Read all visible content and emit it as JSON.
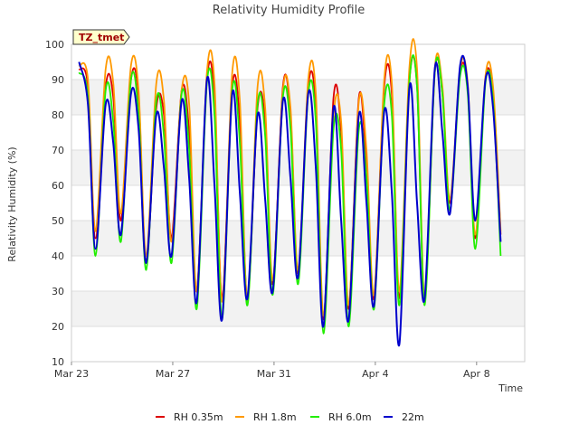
{
  "chart_data": {
    "type": "line",
    "title": "Relativity Humidity Profile",
    "xlabel": "Time",
    "ylabel": "Relativity Humidity (%)",
    "badge": "TZ_tmet",
    "ylim": [
      10,
      100
    ],
    "xlim": [
      0,
      17.9
    ],
    "yticks": [
      10,
      20,
      30,
      40,
      50,
      60,
      70,
      80,
      90,
      100
    ],
    "xticks": [
      {
        "label": "Mar 23",
        "day": 0
      },
      {
        "label": "Mar 27",
        "day": 4
      },
      {
        "label": "Mar 31",
        "day": 8
      },
      {
        "label": "Apr 4",
        "day": 12
      },
      {
        "label": "Apr 8",
        "day": 16
      }
    ],
    "x": [
      0.3,
      0.65,
      0.95,
      1.35,
      1.65,
      1.95,
      2.35,
      2.65,
      2.95,
      3.35,
      3.65,
      3.95,
      4.35,
      4.65,
      4.95,
      5.35,
      5.65,
      5.95,
      6.35,
      6.65,
      6.95,
      7.35,
      7.65,
      7.95,
      8.35,
      8.65,
      8.95,
      9.35,
      9.65,
      9.95,
      10.35,
      10.65,
      10.95,
      11.35,
      11.65,
      11.95,
      12.35,
      12.65,
      12.95,
      13.35,
      13.65,
      13.95,
      14.35,
      14.65,
      14.95,
      15.35,
      15.65,
      15.95,
      16.35,
      16.65,
      16.95
    ],
    "series": [
      {
        "name": "RH 0.35m",
        "color": "#dd0000",
        "values": [
          93,
          88,
          45,
          88,
          85,
          50,
          90,
          85,
          38,
          82,
          80,
          45,
          87,
          75,
          30,
          90,
          85,
          28,
          88,
          78,
          28,
          82,
          78,
          32,
          88,
          80,
          35,
          88,
          82,
          22,
          85,
          75,
          25,
          85,
          65,
          28,
          88,
          86,
          28,
          90,
          88,
          28,
          92,
          86,
          55,
          92,
          87,
          45,
          90,
          85,
          46
        ]
      },
      {
        "name": "RH 1.8m",
        "color": "#ff9900",
        "values": [
          94,
          90,
          47,
          93,
          89,
          52,
          94,
          87,
          40,
          89,
          84,
          44,
          87,
          83,
          30,
          92,
          89,
          27,
          92,
          84,
          27,
          88,
          82,
          33,
          87,
          82,
          36,
          90,
          86,
          23,
          80,
          78,
          26,
          84,
          70,
          29,
          90,
          89,
          30,
          94,
          93,
          29,
          93,
          88,
          56,
          93,
          89,
          46,
          91,
          88,
          47
        ]
      },
      {
        "name": "RH 6.0m",
        "color": "#22ee00",
        "values": [
          92,
          85,
          40,
          87,
          78,
          44,
          90,
          80,
          36,
          84,
          74,
          38,
          86,
          70,
          25,
          89,
          80,
          22,
          87,
          72,
          26,
          83,
          74,
          29,
          85,
          76,
          32,
          86,
          78,
          18,
          76,
          70,
          20,
          76,
          62,
          25,
          83,
          80,
          26,
          90,
          88,
          26,
          92,
          86,
          53,
          91,
          86,
          42,
          89,
          84,
          40
        ]
      },
      {
        "name": "22m",
        "color": "#0000cc",
        "values": [
          95,
          83,
          42,
          83,
          72,
          46,
          86,
          76,
          38,
          80,
          65,
          40,
          84,
          62,
          27,
          90,
          60,
          22,
          86,
          58,
          28,
          80,
          56,
          30,
          84,
          62,
          34,
          86,
          65,
          20,
          82,
          50,
          22,
          80,
          55,
          26,
          81,
          58,
          15,
          88,
          55,
          28,
          93,
          75,
          52,
          94,
          88,
          50,
          90,
          82,
          44
        ]
      }
    ],
    "legend": [
      "RH 0.35m",
      "RH 1.8m",
      "RH 6.0m",
      "22m"
    ],
    "legend_position": "bottom",
    "grid": true
  }
}
